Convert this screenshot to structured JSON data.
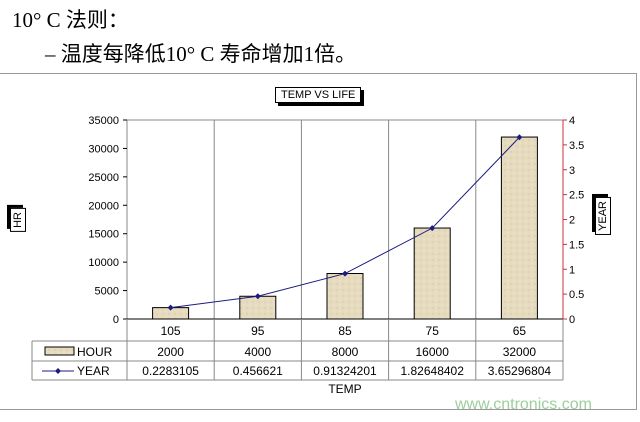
{
  "slide": {
    "bullet": "•",
    "line1": "10° C 法则：",
    "line2": "– 温度每降低10° C 寿命增加1倍。",
    "watermark": "www.cntronics.com"
  },
  "chart_data": {
    "type": "bar+line",
    "title": "TEMP VS LIFE",
    "xlabel": "TEMP",
    "ylabel": "HR",
    "y2label": "YEAR",
    "categories": [
      "105",
      "95",
      "85",
      "75",
      "65"
    ],
    "ylim": [
      0,
      35000
    ],
    "yticks": [
      0,
      5000,
      10000,
      15000,
      20000,
      25000,
      30000,
      35000
    ],
    "y2lim": [
      0,
      4
    ],
    "y2ticks": [
      "0",
      "0.5",
      "1",
      "1.5",
      "2",
      "2.5",
      "3",
      "3.5",
      "4"
    ],
    "grid": "vertical",
    "series": [
      {
        "name": "HOUR",
        "type": "bar",
        "axis": "left",
        "values": [
          2000,
          4000,
          8000,
          16000,
          32000
        ],
        "labels": [
          "2000",
          "4000",
          "8000",
          "16000",
          "32000"
        ],
        "color": "#e6dbbf"
      },
      {
        "name": "YEAR",
        "type": "line",
        "axis": "right",
        "values": [
          0.2283105,
          0.456621,
          0.91324201,
          1.82648402,
          3.65296804
        ],
        "labels": [
          "0.2283105",
          "0.456621",
          "0.91324201",
          "1.82648402",
          "3.65296804"
        ],
        "color": "#1c1c80"
      }
    ]
  }
}
